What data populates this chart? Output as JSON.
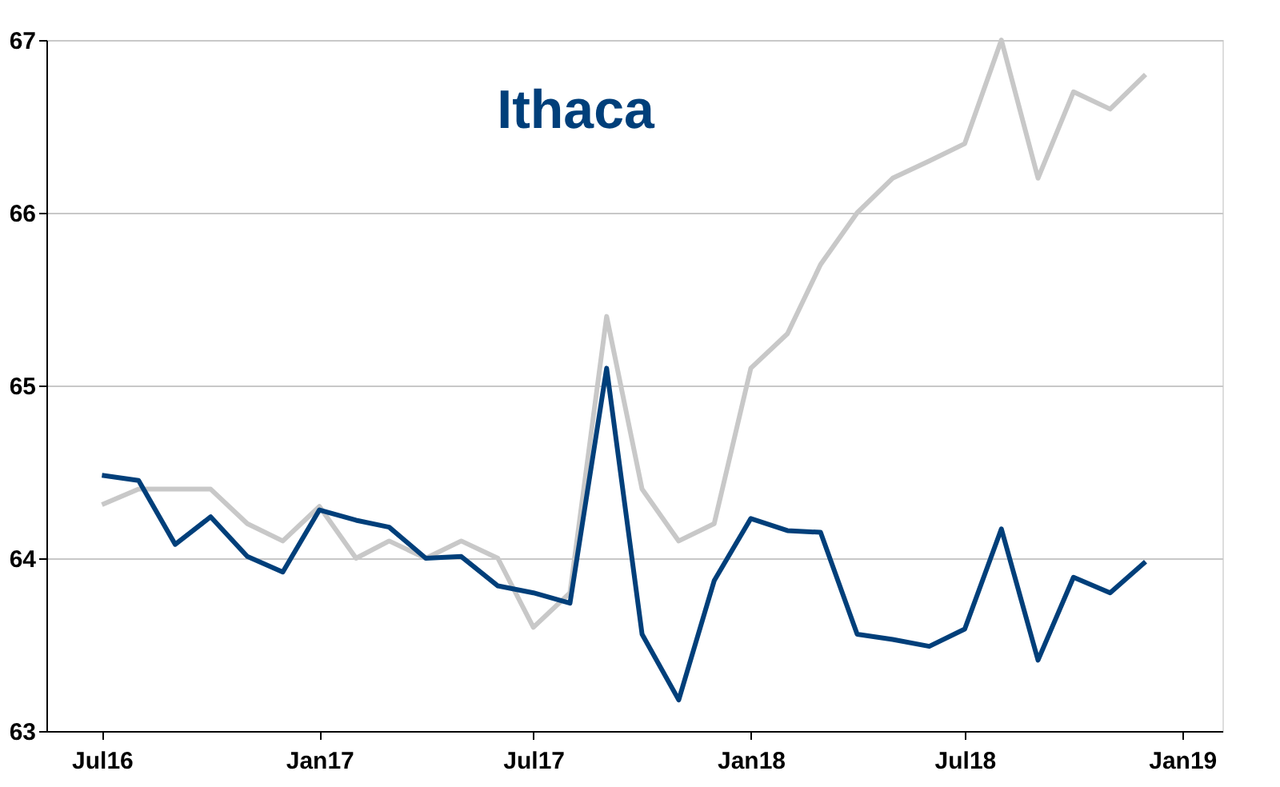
{
  "chart_data": {
    "type": "line",
    "title": "Ithaca",
    "x": [
      "2016-07",
      "2016-08",
      "2016-09",
      "2016-10",
      "2016-11",
      "2016-12",
      "2017-01",
      "2017-02",
      "2017-03",
      "2017-04",
      "2017-05",
      "2017-06",
      "2017-07",
      "2017-08",
      "2017-09",
      "2017-10",
      "2017-11",
      "2017-12",
      "2018-01",
      "2018-02",
      "2018-03",
      "2018-04",
      "2018-05",
      "2018-06",
      "2018-07",
      "2018-08",
      "2018-09",
      "2018-10",
      "2018-11",
      "2018-12"
    ],
    "series": [
      {
        "color": "#c8c8c8",
        "values": [
          64.31,
          64.4,
          64.4,
          64.4,
          64.2,
          64.1,
          64.3,
          64.0,
          64.1,
          64.0,
          64.1,
          64.0,
          63.6,
          63.8,
          65.4,
          64.4,
          64.1,
          64.2,
          65.1,
          65.3,
          65.7,
          66.0,
          66.2,
          66.3,
          66.4,
          67.0,
          66.2,
          66.7,
          66.6,
          66.8
        ]
      },
      {
        "color": "#003f7a",
        "values": [
          64.48,
          64.45,
          64.08,
          64.24,
          64.01,
          63.92,
          64.28,
          64.22,
          64.18,
          64.0,
          64.01,
          63.84,
          63.8,
          63.74,
          65.1,
          63.56,
          63.18,
          63.87,
          64.23,
          64.16,
          64.15,
          63.56,
          63.53,
          63.49,
          63.59,
          64.17,
          63.41,
          63.89,
          63.8,
          63.98
        ]
      }
    ],
    "xlim": [
      "2016-05-15",
      "2019-02-04"
    ],
    "xticks": [
      {
        "value": "2016-07",
        "label": "Jul16"
      },
      {
        "value": "2017-01",
        "label": "Jan17"
      },
      {
        "value": "2017-07",
        "label": "Jul17"
      },
      {
        "value": "2018-01",
        "label": "Jan18"
      },
      {
        "value": "2018-07",
        "label": "Jul18"
      },
      {
        "value": "2019-01",
        "label": "Jan19"
      }
    ],
    "ylim": [
      63,
      67
    ],
    "yticks": [
      63,
      64,
      65,
      66,
      67
    ],
    "grid": "y",
    "line_style": "solid",
    "marker": "none"
  }
}
